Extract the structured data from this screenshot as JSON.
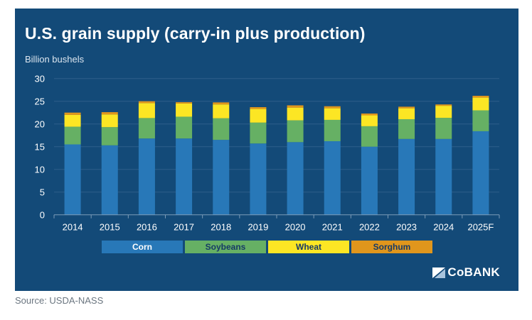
{
  "source": "Source: USDA-NASS",
  "brand": {
    "name": "CoBANK",
    "icon": "cobank-logo-icon"
  },
  "colors": {
    "background": "#134a78",
    "gridline": "#2e5e8a",
    "axis": "#7d9cb8",
    "Corn": "#2878b8",
    "Soybeans": "#66b064",
    "Wheat": "#fce624",
    "Sorghum": "#e0961c"
  },
  "legend": [
    {
      "label": "Corn",
      "color": "#2878b8",
      "text_color": "#ffffff"
    },
    {
      "label": "Soybeans",
      "color": "#66b064",
      "text_color": "#163a66"
    },
    {
      "label": "Wheat",
      "color": "#fce624",
      "text_color": "#163a66"
    },
    {
      "label": "Sorghum",
      "color": "#e0961c",
      "text_color": "#163a66"
    }
  ],
  "chart_data": {
    "type": "bar",
    "stacked": true,
    "title": "U.S. grain supply (carry-in plus production)",
    "ylabel": "Billion bushels",
    "xlabel": "",
    "ylim": [
      0,
      30
    ],
    "yticks": [
      0,
      5,
      10,
      15,
      20,
      25,
      30
    ],
    "grid": true,
    "legend_position": "bottom",
    "categories": [
      "2014",
      "2015",
      "2016",
      "2017",
      "2018",
      "2019",
      "2020",
      "2021",
      "2022",
      "2023",
      "2024",
      "2025F"
    ],
    "series": [
      {
        "name": "Corn",
        "values": [
          15.5,
          15.3,
          16.8,
          16.8,
          16.5,
          15.7,
          16.0,
          16.2,
          15.0,
          16.7,
          16.7,
          18.4
        ]
      },
      {
        "name": "Soybeans",
        "values": [
          3.9,
          4.0,
          4.5,
          4.8,
          4.75,
          4.6,
          4.8,
          4.7,
          4.5,
          4.35,
          4.65,
          4.6
        ]
      },
      {
        "name": "Wheat",
        "values": [
          2.6,
          2.8,
          3.3,
          2.9,
          3.05,
          3.0,
          2.8,
          2.55,
          2.4,
          2.4,
          2.65,
          2.8
        ]
      },
      {
        "name": "Sorghum",
        "values": [
          0.5,
          0.5,
          0.4,
          0.3,
          0.45,
          0.4,
          0.5,
          0.45,
          0.4,
          0.35,
          0.3,
          0.4
        ]
      }
    ]
  }
}
